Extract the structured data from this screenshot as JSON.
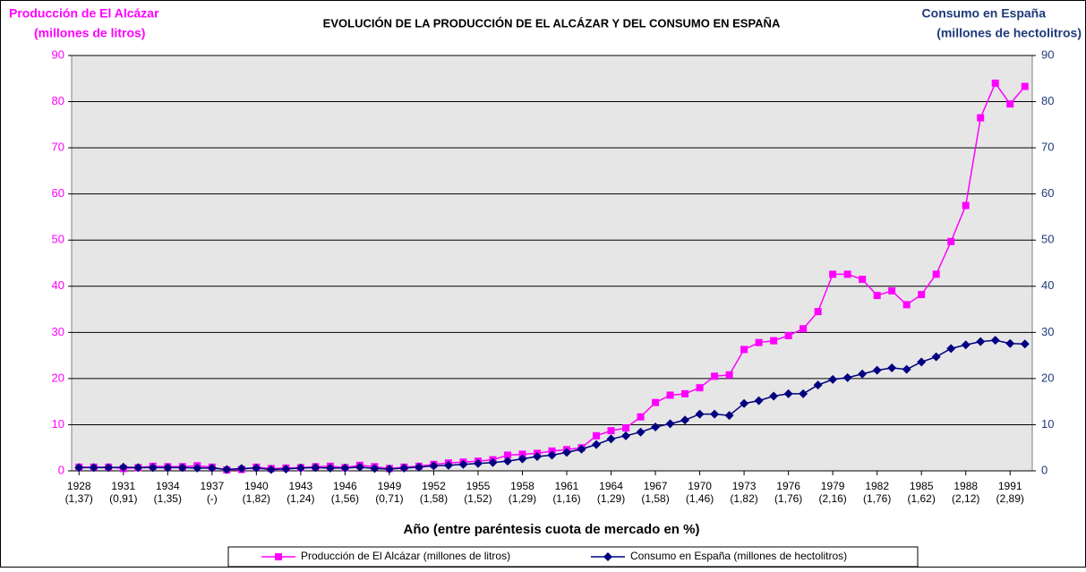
{
  "chart_data": {
    "type": "line",
    "title": "EVOLUCIÓN DE LA PRODUCCIÓN DE EL ALCÁZAR  Y DEL CONSUMO EN ESPAÑA",
    "y_label": [
      "Producción de El Alcázar",
      "(millones de litros)"
    ],
    "y2_label": [
      "Consumo en España",
      "(millones de hectolitros)"
    ],
    "x_label": "Año (entre paréntesis cuota de mercado en %)",
    "categories": [
      "1928",
      null,
      null,
      "1931",
      null,
      null,
      "1934",
      null,
      null,
      "1937",
      null,
      null,
      "1940",
      null,
      null,
      "1943",
      null,
      null,
      "1946",
      null,
      null,
      "1949",
      null,
      null,
      "1952",
      null,
      null,
      "1955",
      null,
      null,
      "1958",
      null,
      null,
      "1961",
      null,
      null,
      "1964",
      null,
      null,
      "1967",
      null,
      null,
      "1970",
      null,
      null,
      "1973",
      null,
      null,
      "1976",
      null,
      null,
      "1979",
      null,
      null,
      "1982",
      null,
      null,
      "1985",
      null,
      null,
      "1988",
      null,
      null,
      "1991",
      null
    ],
    "category_sublabels": [
      "(1,37)",
      null,
      null,
      "(0,91)",
      null,
      null,
      "(1,35)",
      null,
      null,
      "(-)",
      null,
      null,
      "(1,82)",
      null,
      null,
      "(1,24)",
      null,
      null,
      "(1,56)",
      null,
      null,
      "(0,71)",
      null,
      null,
      "(1,58)",
      null,
      null,
      "(1,52)",
      null,
      null,
      "(1,29)",
      null,
      null,
      "(1,16)",
      null,
      null,
      "(1,29)",
      null,
      null,
      "(1,58)",
      null,
      null,
      "(1,46)",
      null,
      null,
      "(1,82)",
      null,
      null,
      "(1,76)",
      null,
      null,
      "(2,16)",
      null,
      null,
      "(1,76)",
      null,
      null,
      "(1,62)",
      null,
      null,
      "(2,12)",
      null,
      null,
      "(2,89)",
      null
    ],
    "series": [
      {
        "name": "Producción de El Alcázar (millones de  litros)",
        "color": "#ff00ff",
        "marker": "square",
        "values": [
          0.8,
          0.8,
          0.8,
          0.5,
          0.7,
          1.0,
          0.9,
          0.9,
          1.1,
          0.8,
          0.2,
          0.3,
          0.8,
          0.5,
          0.6,
          0.7,
          0.9,
          1.0,
          0.7,
          1.2,
          0.9,
          0.5,
          0.8,
          1.0,
          1.4,
          1.7,
          1.9,
          2.1,
          2.4,
          3.4,
          3.6,
          3.8,
          4.3,
          4.6,
          5.0,
          7.6,
          8.7,
          9.3,
          11.7,
          14.8,
          16.4,
          16.7,
          18.0,
          20.5,
          20.8,
          26.3,
          27.8,
          28.2,
          29.3,
          30.8,
          34.5,
          42.6,
          42.6,
          41.5,
          38.0,
          39.0,
          36.0,
          38.2,
          42.6,
          49.7,
          57.5,
          76.5,
          84.0,
          79.5,
          83.3
        ]
      },
      {
        "name": "Consumo en España (millones de hectolitros)",
        "color": "#000080",
        "marker": "diamond",
        "axis": "y2",
        "values": [
          0.7,
          0.7,
          0.7,
          0.8,
          0.7,
          0.7,
          0.7,
          0.7,
          0.6,
          0.6,
          0.3,
          0.5,
          0.6,
          0.3,
          0.4,
          0.6,
          0.7,
          0.6,
          0.6,
          0.8,
          0.5,
          0.4,
          0.6,
          0.8,
          1.1,
          1.2,
          1.4,
          1.6,
          1.8,
          2.1,
          2.6,
          3.1,
          3.4,
          4.0,
          4.7,
          5.7,
          6.9,
          7.6,
          8.4,
          9.5,
          10.2,
          11.0,
          12.3,
          12.3,
          12.0,
          14.6,
          15.2,
          16.2,
          16.7,
          16.7,
          18.6,
          19.8,
          20.2,
          21.0,
          21.8,
          22.3,
          22.0,
          23.6,
          24.7,
          26.5,
          27.3,
          28.0,
          28.3,
          27.6,
          27.5
        ]
      }
    ],
    "ylim": [
      0,
      90
    ],
    "yticks": [
      0,
      10,
      20,
      30,
      40,
      50,
      60,
      70,
      80,
      90
    ],
    "y2lim": [
      0,
      90
    ],
    "y2ticks": [
      0,
      10,
      20,
      30,
      40,
      50,
      60,
      70,
      80,
      90
    ],
    "grid": true,
    "legend": "bottom"
  }
}
